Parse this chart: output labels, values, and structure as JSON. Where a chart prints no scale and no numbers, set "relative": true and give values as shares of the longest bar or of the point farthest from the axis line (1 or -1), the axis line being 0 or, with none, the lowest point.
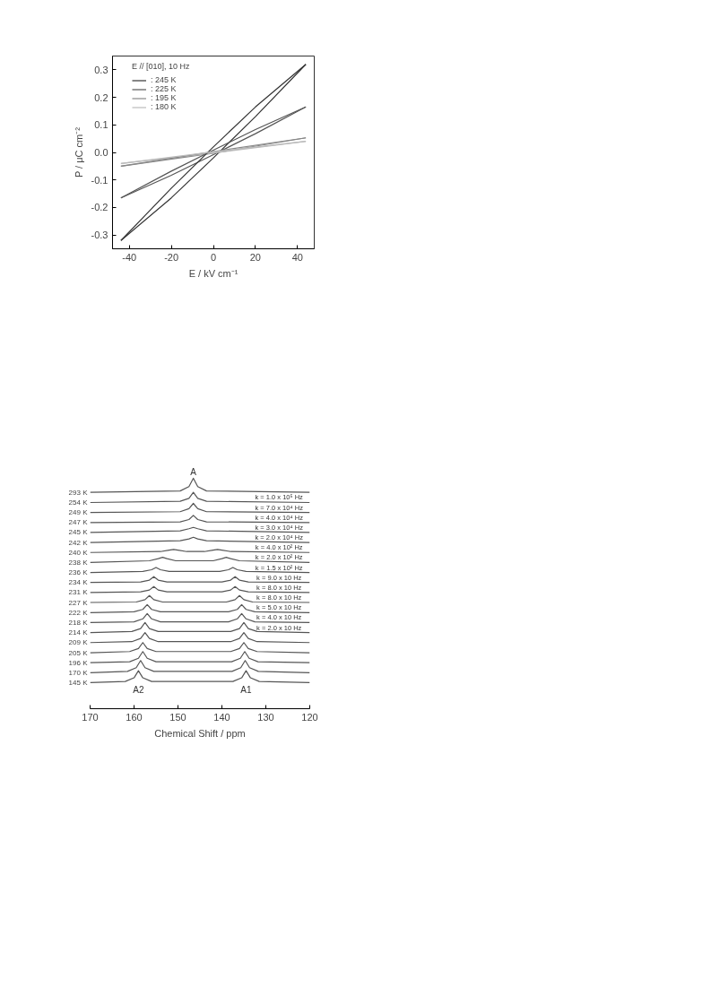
{
  "chart_data": [
    {
      "type": "line",
      "xlabel": "E / kV cm⁻¹",
      "ylabel": "P / μC cm⁻²",
      "legend_title": "E // [010], 10 Hz",
      "legend": "top left",
      "grid": false,
      "xlim": [
        -48,
        48
      ],
      "ylim": [
        -0.35,
        0.35
      ],
      "xticks": [
        -40,
        -20,
        0,
        20,
        40
      ],
      "yticks": [
        -0.3,
        -0.2,
        -0.1,
        {
          "value": 0,
          "label": "0.0"
        },
        0.1,
        0.2,
        0.3
      ],
      "series": [
        {
          "name": ": 245 K",
          "color": "#333333",
          "x": [
            -44,
            -20,
            0,
            20,
            44
          ],
          "values": [
            -0.32,
            -0.165,
            -0.02,
            0.13,
            0.32
          ]
        },
        {
          "name": ": 225 K",
          "color": "#555555",
          "x": [
            -44,
            -20,
            0,
            20,
            44
          ],
          "values": [
            -0.165,
            -0.083,
            -0.008,
            0.068,
            0.165
          ]
        },
        {
          "name": ": 195 K",
          "color": "#888888",
          "x": [
            -44,
            0,
            44
          ],
          "values": [
            -0.05,
            -0.003,
            0.053
          ]
        },
        {
          "name": ": 180 K",
          "color": "#bbbbbb",
          "x": [
            -44,
            0,
            44
          ],
          "values": [
            -0.04,
            -0.002,
            0.04
          ]
        },
        {
          "color": "#333333",
          "x": [
            -44,
            -20,
            0,
            20,
            44
          ],
          "values": [
            -0.32,
            -0.13,
            0.02,
            0.165,
            0.32
          ]
        },
        {
          "color": "#555555",
          "x": [
            -44,
            -20,
            0,
            20,
            44
          ],
          "values": [
            -0.165,
            -0.068,
            0.008,
            0.083,
            0.165
          ]
        },
        {
          "color": "#888888",
          "x": [
            -44,
            0,
            44
          ],
          "values": [
            -0.05,
            0.003,
            0.053
          ]
        },
        {
          "color": "#bbbbbb",
          "x": [
            -44,
            0,
            44
          ],
          "values": [
            -0.04,
            0.002,
            0.04
          ]
        }
      ]
    },
    {
      "type": "line",
      "relative": true,
      "xlabel": "Chemical Shift / ppm",
      "grid": false,
      "xlim": [
        170,
        120
      ],
      "xticks": [
        170,
        160,
        150,
        140,
        130,
        120
      ],
      "annotations": [
        {
          "text": "A",
          "x": 146.5,
          "y": 1.0
        },
        {
          "text": "A2",
          "x": 159,
          "y": 0.165
        },
        {
          "text": "A1",
          "x": 134.5,
          "y": 0.165
        },
        {
          "text": "k = 1.0 x 10⁵ Hz",
          "x": 127,
          "y": 0.895
        },
        {
          "text": "k = 7.0 x 10⁴ Hz",
          "x": 127,
          "y": 0.852
        },
        {
          "text": "k = 4.0 x 10⁴ Hz",
          "x": 127,
          "y": 0.808
        },
        {
          "text": "k = 3.0 x 10⁴ Hz",
          "x": 127,
          "y": 0.765
        },
        {
          "text": "k = 2.0 x 10⁴ Hz",
          "x": 127,
          "y": 0.721
        },
        {
          "text": "k = 4.0 x 10² Hz",
          "x": 127,
          "y": 0.678
        },
        {
          "text": "k = 2.0 x 10² Hz",
          "x": 127,
          "y": 0.635
        },
        {
          "text": "k = 1.5 x 10² Hz",
          "x": 127,
          "y": 0.591
        },
        {
          "text": "k = 9.0 x 10 Hz",
          "x": 127,
          "y": 0.548
        },
        {
          "text": "k = 8.0 x 10 Hz",
          "x": 127,
          "y": 0.504
        },
        {
          "text": "k = 8.0 x 10 Hz",
          "x": 127,
          "y": 0.461
        },
        {
          "text": "k = 5.0 x 10 Hz",
          "x": 127,
          "y": 0.417
        },
        {
          "text": "k = 4.0 x 10 Hz",
          "x": 127,
          "y": 0.374
        },
        {
          "text": "k = 2.0 x 10 Hz",
          "x": 127,
          "y": 0.33
        }
      ],
      "series": [
        {
          "name": "293 K",
          "color": "#555555",
          "x": [
            170,
            149.5,
            147.5,
            146.5,
            145.5,
            143.5,
            120
          ],
          "values": [
            0.939,
            0.945,
            0.964,
            1.0,
            0.964,
            0.945,
            0.939
          ]
        },
        {
          "name": "254 K",
          "color": "#555555",
          "x": [
            170,
            149.5,
            147.5,
            146.5,
            145.5,
            143.5,
            120
          ],
          "values": [
            0.895,
            0.9,
            0.913,
            0.939,
            0.913,
            0.9,
            0.895
          ]
        },
        {
          "name": "249 K",
          "color": "#555555",
          "x": [
            170,
            149.5,
            147.5,
            146.5,
            145.5,
            143.5,
            120
          ],
          "values": [
            0.852,
            0.855,
            0.868,
            0.891,
            0.868,
            0.855,
            0.852
          ]
        },
        {
          "name": "247 K",
          "color": "#555555",
          "x": [
            170,
            149.5,
            147.5,
            146.5,
            145.5,
            143.5,
            120
          ],
          "values": [
            0.808,
            0.811,
            0.821,
            0.839,
            0.821,
            0.811,
            0.808
          ]
        },
        {
          "name": "245 K",
          "color": "#555555",
          "x": [
            170,
            149.5,
            147.5,
            146.5,
            145.5,
            143.5,
            120
          ],
          "values": [
            0.765,
            0.772,
            0.781,
            0.787,
            0.781,
            0.772,
            0.765
          ]
        },
        {
          "name": "242 K",
          "color": "#555555",
          "x": [
            170,
            149.5,
            147.5,
            146.5,
            145.5,
            143.5,
            120
          ],
          "values": [
            0.721,
            0.729,
            0.737,
            0.744,
            0.737,
            0.729,
            0.721
          ]
        },
        {
          "name": "240 K",
          "color": "#555555",
          "x": [
            170,
            154,
            152,
            151,
            150,
            148,
            144,
            142,
            141,
            140,
            138,
            120
          ],
          "values": [
            0.678,
            0.682,
            0.688,
            0.691,
            0.688,
            0.682,
            0.682,
            0.688,
            0.691,
            0.688,
            0.682,
            0.678
          ]
        },
        {
          "name": "238 K",
          "color": "#555555",
          "x": [
            170,
            156.5,
            154.5,
            153.5,
            152.5,
            150.5,
            142,
            140,
            139,
            138,
            136,
            120
          ],
          "values": [
            0.635,
            0.642,
            0.651,
            0.657,
            0.651,
            0.642,
            0.642,
            0.651,
            0.657,
            0.651,
            0.642,
            0.635
          ]
        },
        {
          "name": "236 K",
          "color": "#555555",
          "x": [
            170,
            158,
            156,
            155,
            154,
            152,
            140.5,
            138.5,
            137.5,
            136.5,
            134.5,
            120
          ],
          "values": [
            0.591,
            0.596,
            0.603,
            0.613,
            0.603,
            0.596,
            0.596,
            0.603,
            0.613,
            0.603,
            0.596,
            0.591
          ]
        },
        {
          "name": "234 K",
          "color": "#555555",
          "x": [
            170,
            158.5,
            156.5,
            155.5,
            154.5,
            152.5,
            140,
            138,
            137,
            136,
            134,
            120
          ],
          "values": [
            0.548,
            0.55,
            0.558,
            0.573,
            0.558,
            0.55,
            0.55,
            0.558,
            0.573,
            0.558,
            0.55,
            0.548
          ]
        },
        {
          "name": "231 K",
          "color": "#555555",
          "x": [
            170,
            158.5,
            156.5,
            155.5,
            154.5,
            152.5,
            140,
            138,
            137,
            136,
            134,
            120
          ],
          "values": [
            0.504,
            0.507,
            0.515,
            0.53,
            0.515,
            0.507,
            0.507,
            0.515,
            0.53,
            0.515,
            0.507,
            0.504
          ]
        },
        {
          "name": "227 K",
          "color": "#555555",
          "x": [
            170,
            159.5,
            157.5,
            156.5,
            155.5,
            153.5,
            139,
            137,
            136,
            135,
            133,
            120
          ],
          "values": [
            0.461,
            0.463,
            0.473,
            0.491,
            0.473,
            0.463,
            0.463,
            0.473,
            0.491,
            0.473,
            0.463,
            0.461
          ]
        },
        {
          "name": "222 K",
          "color": "#555555",
          "x": [
            170,
            160,
            158,
            157,
            156,
            154,
            138.5,
            136.5,
            135.5,
            134.5,
            132.5,
            120
          ],
          "values": [
            0.417,
            0.421,
            0.431,
            0.452,
            0.431,
            0.421,
            0.421,
            0.431,
            0.452,
            0.431,
            0.421,
            0.417
          ]
        },
        {
          "name": "218 K",
          "color": "#555555",
          "x": [
            170,
            160,
            158,
            157,
            156,
            154,
            138.5,
            136.5,
            135.5,
            134.5,
            132.5,
            120
          ],
          "values": [
            0.374,
            0.377,
            0.39,
            0.413,
            0.39,
            0.377,
            0.377,
            0.39,
            0.413,
            0.39,
            0.377,
            0.374
          ]
        },
        {
          "name": "214 K",
          "color": "#555555",
          "x": [
            170,
            160.5,
            158.5,
            157.5,
            156.5,
            154.5,
            138,
            136,
            135,
            134,
            132,
            120
          ],
          "values": [
            0.33,
            0.335,
            0.348,
            0.374,
            0.348,
            0.335,
            0.335,
            0.348,
            0.374,
            0.348,
            0.335,
            0.33
          ]
        },
        {
          "name": "209 K",
          "color": "#555555",
          "x": [
            170,
            160.5,
            158.5,
            157.5,
            156.5,
            154.5,
            138,
            136,
            135,
            134,
            132,
            120
          ],
          "values": [
            0.287,
            0.291,
            0.305,
            0.33,
            0.305,
            0.291,
            0.291,
            0.305,
            0.33,
            0.305,
            0.291,
            0.287
          ]
        },
        {
          "name": "205 K",
          "color": "#555555",
          "x": [
            170,
            161,
            159,
            158,
            157,
            155,
            138,
            136,
            135,
            134,
            132,
            120
          ],
          "values": [
            0.243,
            0.248,
            0.261,
            0.287,
            0.261,
            0.248,
            0.248,
            0.261,
            0.287,
            0.261,
            0.248,
            0.243
          ]
        },
        {
          "name": "196 K",
          "color": "#555555",
          "x": [
            170,
            161,
            159,
            158,
            157,
            155,
            137.8,
            135.8,
            134.8,
            133.8,
            131.8,
            120
          ],
          "values": [
            0.2,
            0.204,
            0.219,
            0.248,
            0.219,
            0.204,
            0.204,
            0.219,
            0.248,
            0.219,
            0.204,
            0.2
          ]
        },
        {
          "name": "170 K",
          "color": "#555555",
          "x": [
            170,
            161.5,
            159.5,
            158.5,
            157.5,
            155.5,
            137.7,
            135.7,
            134.7,
            133.7,
            131.7,
            120
          ],
          "values": [
            0.156,
            0.162,
            0.178,
            0.209,
            0.178,
            0.162,
            0.162,
            0.178,
            0.209,
            0.178,
            0.162,
            0.156
          ]
        },
        {
          "name": "145 K",
          "color": "#555555",
          "x": [
            170,
            162,
            160,
            159,
            158,
            156,
            137.5,
            135.5,
            134.5,
            133.5,
            131.5,
            120
          ],
          "values": [
            0.113,
            0.118,
            0.134,
            0.165,
            0.134,
            0.118,
            0.118,
            0.134,
            0.165,
            0.134,
            0.118,
            0.113
          ]
        }
      ]
    }
  ]
}
